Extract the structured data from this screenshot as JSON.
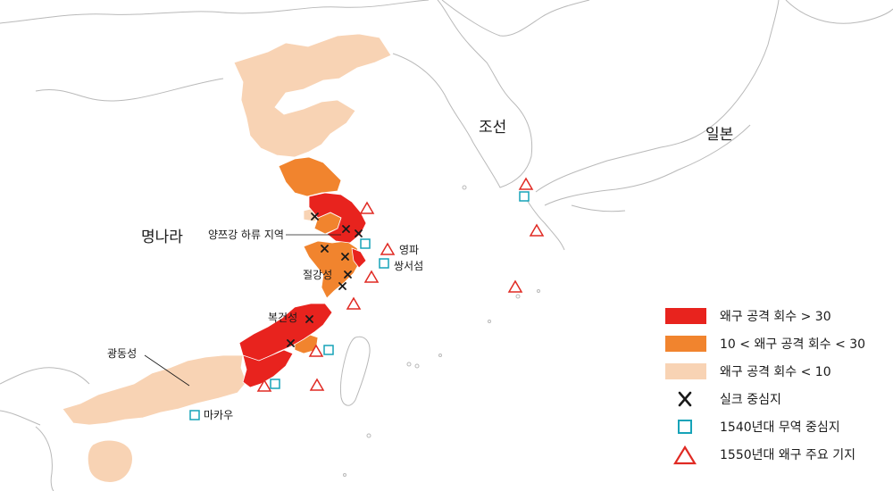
{
  "colors": {
    "sea": "#ffffff",
    "land": "#ffffff",
    "border": "#b9b9b9",
    "high": "#e8231e",
    "mid": "#f1842e",
    "low": "#f8d3b4",
    "silk": "#1a1a1a",
    "trade": "#16a3b8",
    "base": "#e02a23"
  },
  "labels": {
    "ming": "명나라",
    "joseon": "조선",
    "japan": "일본",
    "yangtze": "양쯔강 하류 지역",
    "zhejiang": "절강성",
    "fujian": "복건성",
    "guangdong": "광동성",
    "ningbo": "영파",
    "shuangyu": "쌍서섬",
    "macau": "마카우"
  },
  "legend": [
    {
      "symbol": "high",
      "text": "왜구 공격 회수 > 30"
    },
    {
      "symbol": "mid",
      "text": "10 < 왜구 공격 회수 < 30"
    },
    {
      "symbol": "low",
      "text": "왜구 공격 회수 < 10"
    },
    {
      "symbol": "silk",
      "text": "실크 중심지"
    },
    {
      "symbol": "trade",
      "text": "1540년대 무역 중심지"
    },
    {
      "symbol": "base",
      "text": "1550년대 왜구 주요 기지"
    }
  ]
}
